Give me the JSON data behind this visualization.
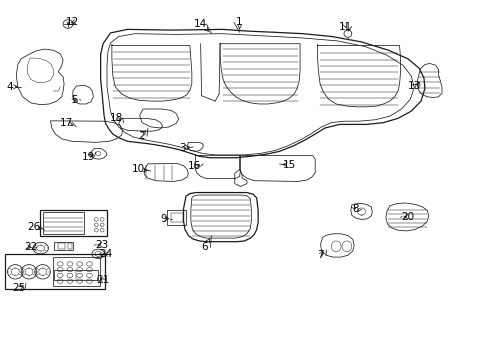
{
  "background_color": "#ffffff",
  "fig_width": 4.89,
  "fig_height": 3.6,
  "dpi": 100,
  "line_color": "#1a1a1a",
  "label_fontsize": 7.5,
  "label_color": "#000000",
  "label_positions": {
    "1": [
      0.488,
      0.935,
      0.488,
      0.88
    ],
    "2": [
      0.29,
      0.62,
      0.3,
      0.635
    ],
    "3": [
      0.378,
      0.59,
      0.39,
      0.59
    ],
    "4": [
      0.022,
      0.76,
      0.045,
      0.758
    ],
    "5": [
      0.158,
      0.72,
      0.168,
      0.72
    ],
    "6": [
      0.418,
      0.31,
      0.435,
      0.345
    ],
    "7": [
      0.66,
      0.29,
      0.665,
      0.315
    ],
    "8": [
      0.73,
      0.415,
      0.728,
      0.41
    ],
    "9": [
      0.34,
      0.39,
      0.36,
      0.39
    ],
    "10": [
      0.288,
      0.53,
      0.31,
      0.528
    ],
    "11": [
      0.71,
      0.925,
      0.71,
      0.91
    ],
    "12": [
      0.148,
      0.938,
      0.138,
      0.934
    ],
    "13": [
      0.855,
      0.76,
      0.856,
      0.78
    ],
    "14": [
      0.412,
      0.93,
      0.432,
      0.895
    ],
    "15": [
      0.59,
      0.545,
      0.57,
      0.548
    ],
    "16": [
      0.4,
      0.538,
      0.415,
      0.545
    ],
    "17": [
      0.14,
      0.658,
      0.158,
      0.645
    ],
    "18": [
      0.242,
      0.67,
      0.248,
      0.66
    ],
    "19": [
      0.185,
      0.565,
      0.192,
      0.578
    ],
    "20": [
      0.84,
      0.395,
      0.832,
      0.394
    ],
    "21": [
      0.215,
      0.218,
      0.2,
      0.228
    ],
    "22": [
      0.068,
      0.31,
      0.075,
      0.308
    ],
    "23": [
      0.21,
      0.318,
      0.192,
      0.318
    ],
    "24": [
      0.218,
      0.292,
      0.208,
      0.298
    ],
    "25": [
      0.04,
      0.195,
      0.055,
      0.215
    ],
    "26": [
      0.072,
      0.368,
      0.09,
      0.358
    ]
  }
}
